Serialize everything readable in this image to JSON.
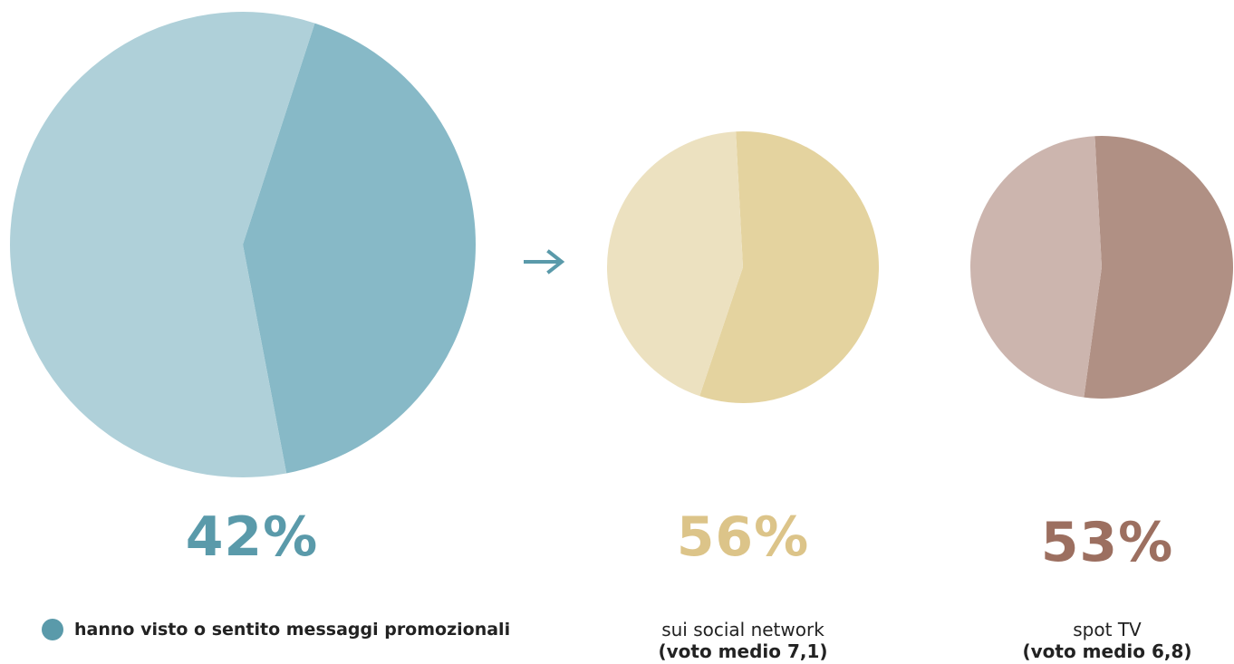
{
  "chart_data": [
    {
      "type": "pie",
      "id": "main",
      "values": [
        42,
        58
      ],
      "colors": [
        "#87b9c7",
        "#afd0d9"
      ],
      "label": "42%",
      "label_color": "#5a9aaa",
      "legend": {
        "text": "hanno visto o sentito messaggi promozionali",
        "color": "#5a9aaa"
      }
    },
    {
      "type": "pie",
      "id": "social",
      "values": [
        56,
        44
      ],
      "colors": [
        "#e4d39f",
        "#ece1c0"
      ],
      "label": "56%",
      "label_color": "#dcc489",
      "caption": "sui social network",
      "caption_bold": "(voto medio 7,1)"
    },
    {
      "type": "pie",
      "id": "tv",
      "values": [
        53,
        47
      ],
      "colors": [
        "#b09084",
        "#ccb5ae"
      ],
      "label": "53%",
      "label_color": "#9c6f60",
      "caption": "spot TV",
      "caption_bold": "(voto medio 6,8)"
    }
  ],
  "arrow_color": "#5a9aaa",
  "arrow_icon": "arrow-right-icon"
}
